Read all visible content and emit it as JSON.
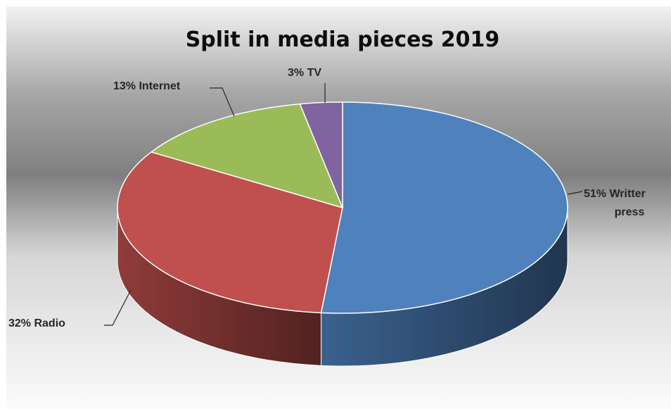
{
  "chart_data": {
    "type": "pie",
    "title": "Split in media pieces 2019",
    "slices": [
      {
        "label": "51% Writter press",
        "category": "Writter press",
        "value": 51,
        "color": "#4f81bd"
      },
      {
        "label": "32% Radio",
        "category": "Radio",
        "value": 32,
        "color": "#c0504d"
      },
      {
        "label": "13% Internet",
        "category": "Internet",
        "value": 13,
        "color": "#9bbb59"
      },
      {
        "label": "3% TV",
        "category": "TV",
        "value": 3,
        "color": "#8064a2"
      }
    ],
    "legend": "none",
    "style": "3d"
  }
}
